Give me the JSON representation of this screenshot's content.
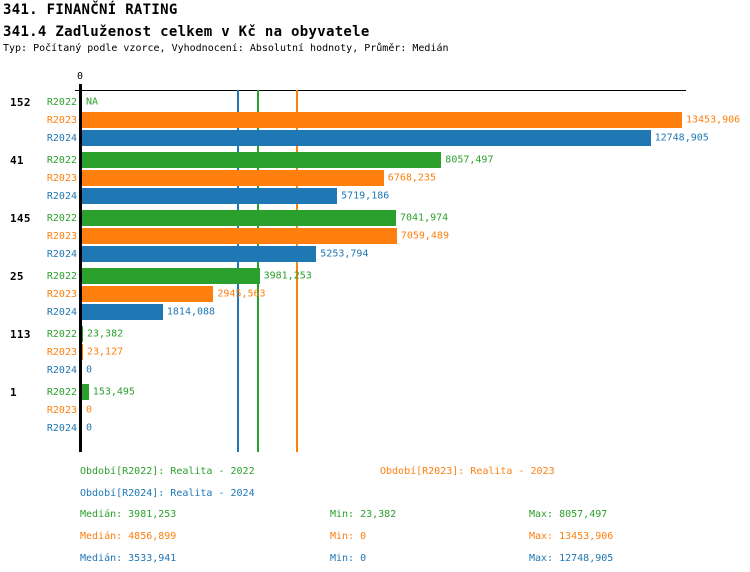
{
  "header": {
    "title": "341. FINANČNÍ RATING",
    "subtitle": "341.4 Zadluženost celkem v Kč na obyvatele",
    "meta": "Typ: Počítaný podle vzorce, Vyhodnocení: Absolutní hodnoty, Průměr: Medián"
  },
  "colors": {
    "r2022": "#2ca02c",
    "r2023": "#ff7f0e",
    "r2024": "#1f77b4",
    "axis": "#000000",
    "background": "#ffffff"
  },
  "chart_data": {
    "type": "bar",
    "orientation": "horizontal",
    "title": "341.4 Zadluženost celkem v Kč na obyvatele",
    "axis_origin_label": "0",
    "xlim": [
      0,
      13600
    ],
    "grid": false,
    "series": [
      {
        "id": "r2022",
        "label": "R2022"
      },
      {
        "id": "r2023",
        "label": "R2023"
      },
      {
        "id": "r2024",
        "label": "R2024"
      }
    ],
    "groups": [
      {
        "label": "152",
        "values": [
          null,
          13453.906,
          12748.905
        ],
        "displays": [
          "NA",
          "13453,906",
          "12748,905"
        ]
      },
      {
        "label": "41",
        "values": [
          8057.497,
          6768.235,
          5719.186
        ],
        "displays": [
          "8057,497",
          "6768,235",
          "5719,186"
        ]
      },
      {
        "label": "145",
        "values": [
          7041.974,
          7059.489,
          5253.794
        ],
        "displays": [
          "7041,974",
          "7059,489",
          "5253,794"
        ]
      },
      {
        "label": "25",
        "values": [
          3981.253,
          2945.563,
          1814.088
        ],
        "displays": [
          "3981,253",
          "2945,563",
          "1814,088"
        ]
      },
      {
        "label": "113",
        "values": [
          23.382,
          23.127,
          0
        ],
        "displays": [
          "23,382",
          "23,127",
          "0"
        ]
      },
      {
        "label": "1",
        "values": [
          153.495,
          0,
          0
        ],
        "displays": [
          "153,495",
          "0",
          "0"
        ]
      }
    ],
    "median_lines": [
      {
        "series": "r2022",
        "value": 3981.253
      },
      {
        "series": "r2023",
        "value": 4856.899
      },
      {
        "series": "r2024",
        "value": 3533.941
      }
    ]
  },
  "legend": {
    "r2022": "Období[R2022]: Realita - 2022",
    "r2023": "Období[R2023]: Realita - 2023",
    "r2024": "Období[R2024]: Realita - 2024"
  },
  "stats": [
    {
      "series": "r2022",
      "median": "Medián: 3981,253",
      "min": "Min: 23,382",
      "max": "Max: 8057,497"
    },
    {
      "series": "r2023",
      "median": "Medián: 4856,899",
      "min": "Min: 0",
      "max": "Max: 13453,906"
    },
    {
      "series": "r2024",
      "median": "Medián: 3533,941",
      "min": "Min: 0",
      "max": "Max: 12748,905"
    }
  ]
}
